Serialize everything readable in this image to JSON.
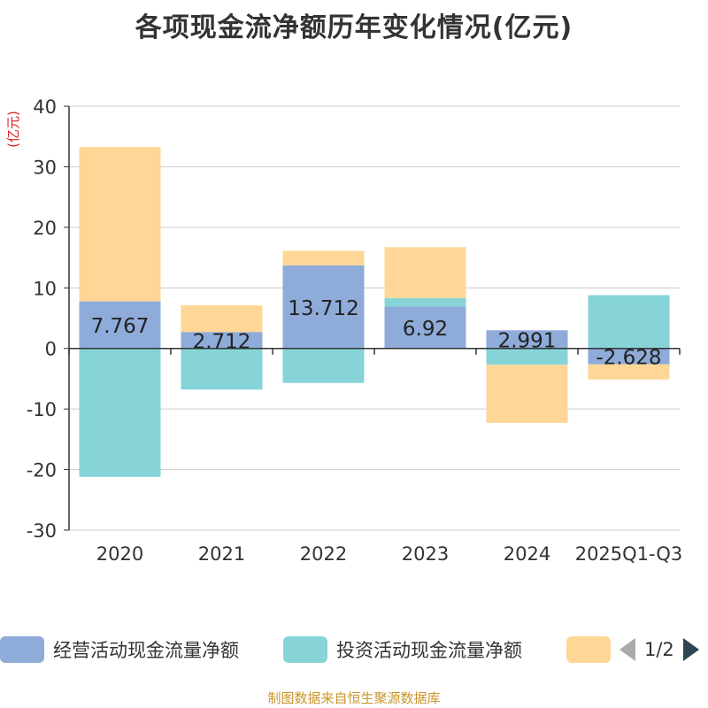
{
  "title": "各项现金流净额历年变化情况(亿元)",
  "source_note": "制图数据来自恒生聚源数据库",
  "pager": {
    "label": "1/2"
  },
  "chart_data": {
    "type": "bar",
    "stacked": true,
    "title": "各项现金流净额历年变化情况(亿元)",
    "ylabel": "(亿元)",
    "ylim": [
      -30,
      40
    ],
    "yticks": [
      40,
      30,
      20,
      10,
      0,
      -10,
      -20,
      -30
    ],
    "ytick_labels": [
      "40",
      "30",
      "20",
      "10",
      "0",
      "-10",
      "-20",
      "-30"
    ],
    "grid": true,
    "categories": [
      "2020",
      "2021",
      "2022",
      "2023",
      "2024",
      "2025Q1-Q3"
    ],
    "series": [
      {
        "name": "经营活动现金流量净额",
        "color": "#8eabd9",
        "values": [
          7.767,
          2.712,
          13.712,
          6.92,
          2.991,
          -2.628
        ],
        "labels": [
          "7.767",
          "2.712",
          "13.712",
          "6.92",
          "2.991",
          "-2.628"
        ]
      },
      {
        "name": "投资活动现金流量净额",
        "color": "#86d4d8",
        "values": [
          -21.2,
          -6.8,
          -5.7,
          1.4,
          -2.7,
          8.8
        ]
      },
      {
        "name": "",
        "color": "#fed797",
        "values": [
          25.5,
          4.4,
          2.4,
          8.4,
          -9.6,
          -2.5
        ]
      }
    ]
  }
}
